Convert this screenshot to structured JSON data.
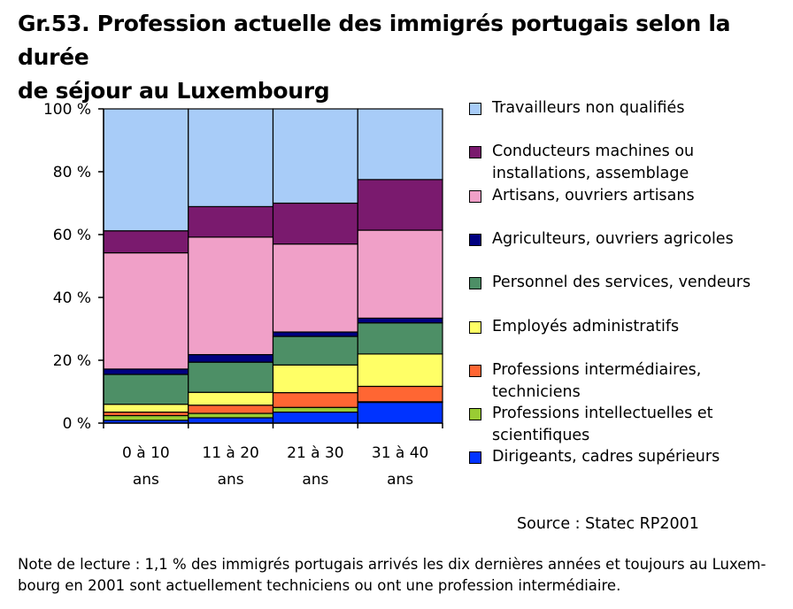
{
  "title_lines": [
    "Gr.53. Profession actuelle des immigrés portugais selon la durée",
    "de séjour au Luxembourg"
  ],
  "source": "Source : Statec RP2001",
  "note_lines": [
    "Note de lecture : 1,1 % des immigrés portugais arrivés les dix dernières années et toujours au Luxem-",
    "bourg en 2001 sont actuellement techniciens ou ont une profession intermédiaire."
  ],
  "chart_data": {
    "type": "bar",
    "stacked": true,
    "title": "Gr.53. Profession actuelle des immigrés portugais selon la durée de séjour au Luxembourg",
    "categories": [
      [
        "0 à 10",
        "ans"
      ],
      [
        "11 à 20",
        "ans"
      ],
      [
        "21 à 30",
        "ans"
      ],
      [
        "31 à 40",
        "ans"
      ]
    ],
    "ylim": [
      0,
      100
    ],
    "y_ticks": [
      {
        "value": 0,
        "label": "0 %"
      },
      {
        "value": 20,
        "label": "20 %"
      },
      {
        "value": 40,
        "label": "40 %"
      },
      {
        "value": 60,
        "label": "60 %"
      },
      {
        "value": 80,
        "label": "80 %"
      },
      {
        "value": 100,
        "label": "100 %"
      }
    ],
    "grid": false,
    "legend_position": "right",
    "series": [
      {
        "name": "Dirigeants, cadres supérieurs",
        "color": "#0033ff",
        "values": [
          0.9,
          1.7,
          3.5,
          6.6
        ]
      },
      {
        "name": "Professions intellectuelles et scientifiques",
        "color": "#99cc33",
        "values": [
          1.5,
          1.4,
          1.5,
          0.2
        ]
      },
      {
        "name": "Professions intermédiaires, techniciens",
        "color": "#ff6633",
        "values": [
          1.1,
          2.6,
          4.7,
          4.9
        ]
      },
      {
        "name": "Employés administratifs",
        "color": "#ffff66",
        "values": [
          2.5,
          4.1,
          8.8,
          10.3
        ]
      },
      {
        "name": "Personnel des services, vendeurs",
        "color": "#4d8f66",
        "values": [
          9.5,
          9.6,
          9.1,
          9.9
        ]
      },
      {
        "name": "Agriculteurs, ouvriers agricoles",
        "color": "#000080",
        "values": [
          1.7,
          2.4,
          1.4,
          1.5
        ]
      },
      {
        "name": "Artisans, ouvriers artisans",
        "color": "#f0a0c8",
        "values": [
          37.0,
          37.4,
          28.0,
          28.0
        ]
      },
      {
        "name": "Conducteurs machines ou installations, assemblage",
        "color": "#7a1a6e",
        "values": [
          7.0,
          9.7,
          13.0,
          16.1
        ]
      },
      {
        "name": "Travailleurs non qualifiés",
        "color": "#a8ccf8",
        "values": [
          38.8,
          31.1,
          30.0,
          22.5
        ]
      }
    ],
    "legend": [
      {
        "lines": [
          "Travailleurs non qualifiés"
        ],
        "color": "#a8ccf8"
      },
      {
        "lines": [
          "Conducteurs machines ou",
          "installations, assemblage"
        ],
        "color": "#7a1a6e"
      },
      {
        "lines": [
          "Artisans, ouvriers artisans"
        ],
        "color": "#f0a0c8"
      },
      {
        "lines": [
          "Agriculteurs, ouvriers agricoles"
        ],
        "color": "#000080"
      },
      {
        "lines": [
          "Personnel des services, vendeurs"
        ],
        "color": "#4d8f66"
      },
      {
        "lines": [
          "Employés administratifs"
        ],
        "color": "#ffff66"
      },
      {
        "lines": [
          "Professions intermédiaires,",
          "techniciens"
        ],
        "color": "#ff6633"
      },
      {
        "lines": [
          "Professions intellectuelles et",
          "scientifiques"
        ],
        "color": "#99cc33"
      },
      {
        "lines": [
          "Dirigeants, cadres supérieurs"
        ],
        "color": "#0033ff"
      }
    ]
  }
}
